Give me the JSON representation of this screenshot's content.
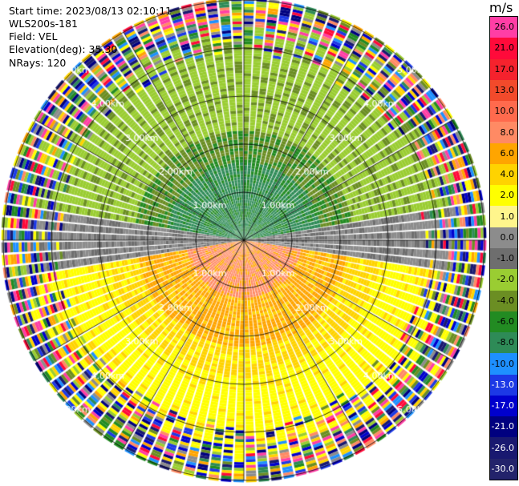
{
  "info": {
    "start_time": "Start time: 2023/08/13 02:10:11",
    "instrument": "WLS200s-181",
    "field": "Field: VEL",
    "elevation": "Elevation(deg): 35.30",
    "nrays": "NRays: 120"
  },
  "chart_data": {
    "type": "heatmap",
    "subtype": "ppi-polar",
    "field": "VEL",
    "nrays": 120,
    "elevation_deg": 35.3,
    "max_range_km": 5.0,
    "range_rings_km": [
      1,
      2,
      3,
      4,
      5
    ],
    "ring_labels": [
      "1.00km",
      "2.00km",
      "3.00km",
      "4.00km",
      "5.00km"
    ],
    "spokes_deg": [
      0,
      30,
      60,
      90,
      120,
      150,
      180,
      210,
      240,
      270,
      300,
      330
    ],
    "colorbar": {
      "unit": "m/s",
      "tick_labels": [
        "26.0",
        "21.0",
        "17.0",
        "13.0",
        "10.0",
        "8.0",
        "6.0",
        "4.0",
        "2.0",
        "1.0",
        "0.0",
        "-1.0",
        "-2.0",
        "-4.0",
        "-6.0",
        "-8.0",
        "-10.0",
        "-13.0",
        "-17.0",
        "-21.0",
        "-26.0",
        "-30.0"
      ],
      "colors": [
        "#ff3ea5",
        "#ff0a3a",
        "#f5222d",
        "#f24a2b",
        "#ff6a4d",
        "#ff8a64",
        "#ffa500",
        "#ffd300",
        "#ffff00",
        "#fff58c",
        "#8c8c8c",
        "#6e6e6e",
        "#9acd32",
        "#6b8e23",
        "#228b22",
        "#2e8b57",
        "#1e90ff",
        "#1c39e6",
        "#0000cd",
        "#000080",
        "#191970",
        "#23236b"
      ]
    },
    "sectors": [
      {
        "from_deg": 300,
        "to_deg": 60,
        "velocity": "negative (approaching)",
        "colors": [
          "olive-green",
          "dark-green",
          "teal"
        ]
      },
      {
        "from_deg": 90,
        "to_deg": 270,
        "velocity": "positive (receding)",
        "colors": [
          "yellow",
          "orange"
        ]
      }
    ],
    "noise_beyond_km": 4.0
  }
}
